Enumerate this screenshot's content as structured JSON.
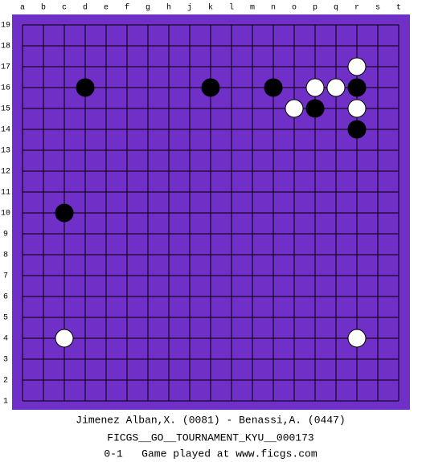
{
  "board": {
    "columns": [
      "a",
      "b",
      "c",
      "d",
      "e",
      "f",
      "g",
      "h",
      "j",
      "k",
      "l",
      "m",
      "n",
      "o",
      "p",
      "q",
      "r",
      "s",
      "t"
    ],
    "rows": [
      "19",
      "18",
      "17",
      "16",
      "15",
      "14",
      "13",
      "12",
      "11",
      "10",
      "9",
      "8",
      "7",
      "6",
      "5",
      "4",
      "3",
      "2",
      "1"
    ],
    "stones": [
      {
        "color": "black",
        "col": "d",
        "row": "16"
      },
      {
        "color": "black",
        "col": "k",
        "row": "16"
      },
      {
        "color": "black",
        "col": "n",
        "row": "16"
      },
      {
        "color": "black",
        "col": "r",
        "row": "16"
      },
      {
        "color": "black",
        "col": "p",
        "row": "15"
      },
      {
        "color": "black",
        "col": "r",
        "row": "14"
      },
      {
        "color": "black",
        "col": "c",
        "row": "10"
      },
      {
        "color": "white",
        "col": "r",
        "row": "17"
      },
      {
        "color": "white",
        "col": "p",
        "row": "16"
      },
      {
        "color": "white",
        "col": "q",
        "row": "16"
      },
      {
        "color": "white",
        "col": "o",
        "row": "15"
      },
      {
        "color": "white",
        "col": "r",
        "row": "15"
      },
      {
        "color": "white",
        "col": "c",
        "row": "4"
      },
      {
        "color": "white",
        "col": "r",
        "row": "4"
      }
    ]
  },
  "footer": {
    "players": "Jimenez Alban,X. (0081) - Benassi,A. (0447)",
    "event": "FICGS__GO__TOURNAMENT_KYU__000173",
    "result": "0-1   Game played at www.ficgs.com"
  }
}
